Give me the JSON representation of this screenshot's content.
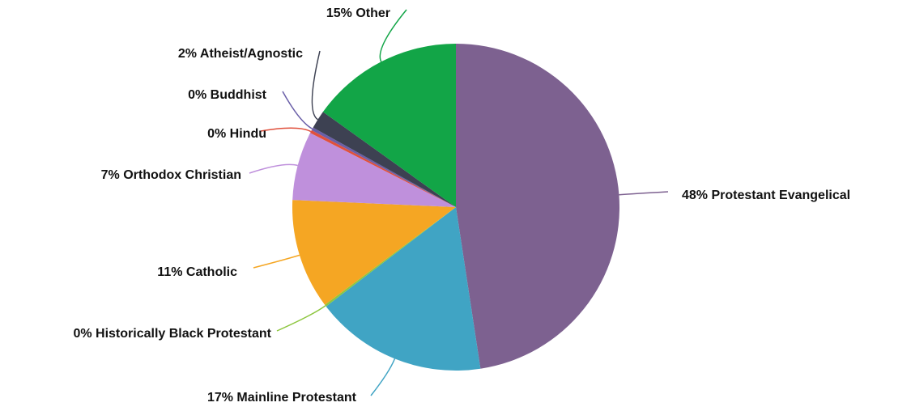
{
  "chart_data": {
    "type": "pie",
    "values": [
      47.6,
      17.0,
      0.2,
      10.9,
      6.8,
      0.3,
      0.3,
      1.8,
      15.1
    ],
    "value_labels": [
      "48% Protestant Evangelical",
      "17% Mainline Protestant",
      "0% Historically Black Protestant",
      "11% Catholic",
      "7% Orthodox Christian",
      "0% Hindu",
      "0% Buddhist",
      "2% Atheist/Agnostic",
      "15% Other"
    ],
    "colors": [
      "#7d6190",
      "#40a4c4",
      "#8dc63f",
      "#f5a623",
      "#bf90dc",
      "#e0503c",
      "#6a5fa8",
      "#3d4152",
      "#12a547"
    ]
  }
}
